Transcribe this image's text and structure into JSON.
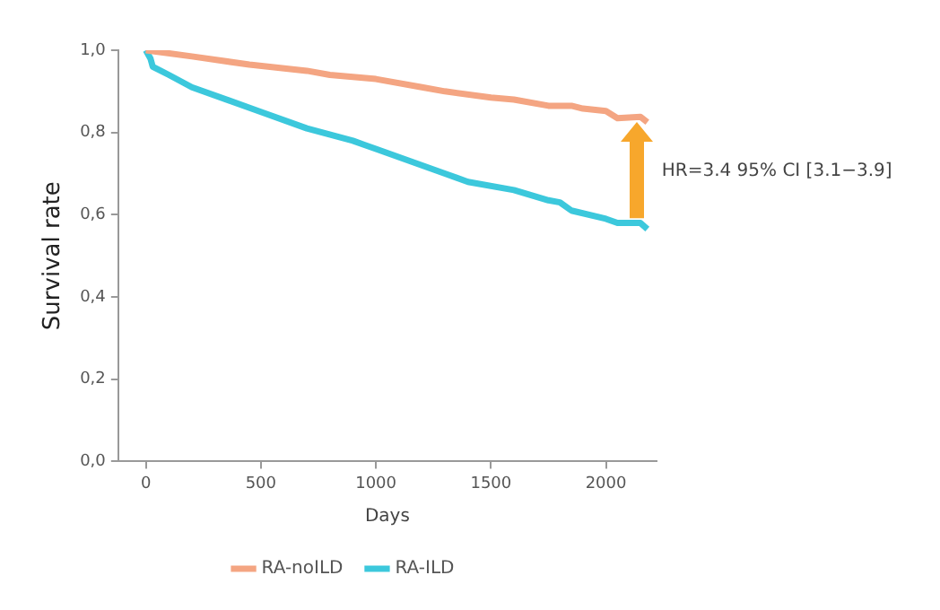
{
  "chart_data": {
    "type": "line",
    "xlabel": "Days",
    "ylabel": "Survival rate",
    "xlim": [
      -120,
      2220
    ],
    "xticks": [
      0,
      500,
      1000,
      1500,
      2000
    ],
    "ylim": [
      0,
      1
    ],
    "yticks": [
      {
        "value": 0,
        "label": "0,0"
      },
      {
        "value": 0.2,
        "label": "0,2"
      },
      {
        "value": 0.4,
        "label": "0,4"
      },
      {
        "value": 0.6,
        "label": "0,6"
      },
      {
        "value": 0.8,
        "label": "0,8"
      },
      {
        "value": 1,
        "label": "1,0"
      }
    ],
    "grid": false,
    "legend": "bottom",
    "marker": "none",
    "line_style": "solid",
    "series": [
      {
        "name": "RA-noILD",
        "color": "#f4a582",
        "x": [
          0,
          200,
          450,
          700,
          800,
          1000,
          1200,
          1300,
          1500,
          1600,
          1750,
          1850,
          1900,
          2000,
          2050,
          2150,
          2180
        ],
        "values": [
          1.0,
          0.985,
          0.965,
          0.95,
          0.94,
          0.93,
          0.91,
          0.9,
          0.885,
          0.88,
          0.865,
          0.865,
          0.858,
          0.852,
          0.835,
          0.838,
          0.825
        ]
      },
      {
        "name": "RA-ILD",
        "color": "#3cc8dc",
        "x": [
          0,
          20,
          30,
          100,
          200,
          500,
          700,
          900,
          950,
          1000,
          1300,
          1400,
          1600,
          1750,
          1800,
          1850,
          2000,
          2050,
          2150,
          2180
        ],
        "values": [
          1.0,
          0.98,
          0.96,
          0.94,
          0.91,
          0.85,
          0.81,
          0.78,
          0.77,
          0.76,
          0.7,
          0.68,
          0.66,
          0.635,
          0.63,
          0.61,
          0.59,
          0.58,
          0.58,
          0.565
        ]
      }
    ],
    "annotations": [
      "HR=3.4 95% CI [3.1−3.9]"
    ]
  }
}
